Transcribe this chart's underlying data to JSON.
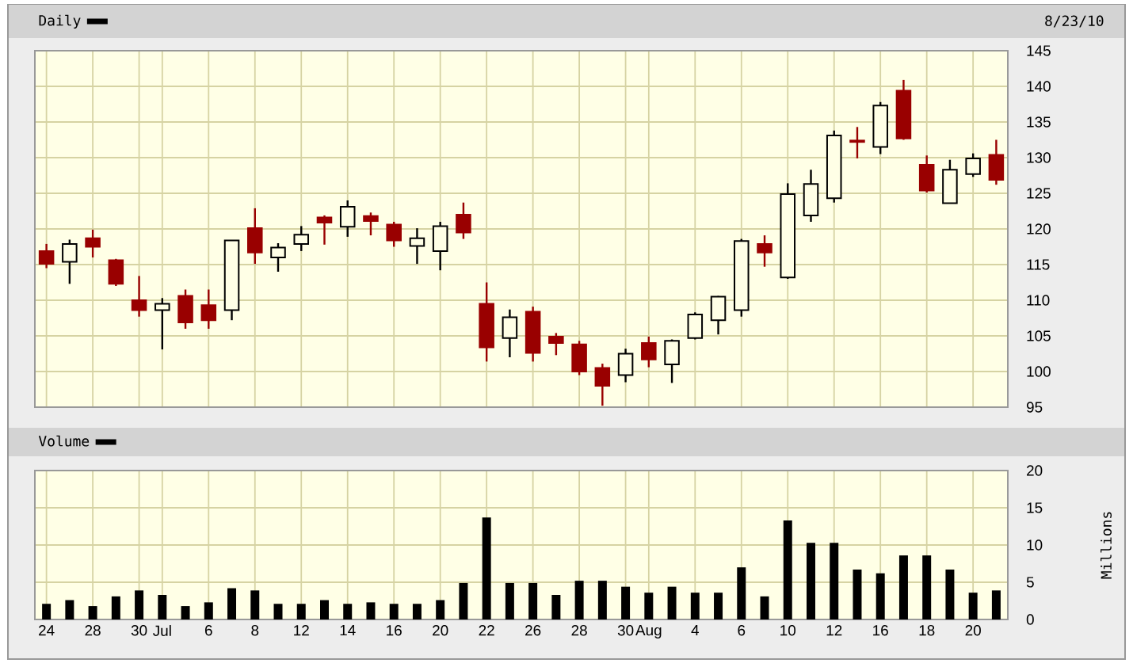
{
  "chart_data": [
    {
      "type": "candlestick",
      "categories": [
        null,
        null,
        null,
        null,
        null,
        null,
        null,
        null,
        null,
        null,
        null,
        null,
        null,
        null,
        null,
        null,
        null,
        null,
        null,
        null,
        null,
        null,
        null,
        null,
        null,
        null,
        null,
        null,
        null,
        null,
        null,
        null,
        null,
        null,
        null,
        null,
        null,
        null,
        null,
        null,
        null,
        null
      ],
      "series": [
        {
          "name": "Daily",
          "color": "#000000",
          "ohlc": [
            [
              116.9,
              117.9,
              114.5,
              115.1
            ],
            [
              115.4,
              118.5,
              112.3,
              117.9
            ],
            [
              118.7,
              119.9,
              116.0,
              117.5
            ],
            [
              115.6,
              115.8,
              112.0,
              112.3
            ],
            [
              110.0,
              113.4,
              107.7,
              108.6
            ],
            [
              108.6,
              110.3,
              103.1,
              109.5
            ],
            [
              110.6,
              111.5,
              106.0,
              106.9
            ],
            [
              109.3,
              111.5,
              106.0,
              107.2
            ],
            [
              108.6,
              118.4,
              107.2,
              118.4
            ],
            [
              120.1,
              122.9,
              115.1,
              116.7
            ],
            [
              116.0,
              118.0,
              114.0,
              117.4
            ],
            [
              117.9,
              120.4,
              116.9,
              119.2
            ],
            [
              121.6,
              121.9,
              117.8,
              120.9
            ],
            [
              120.3,
              124.0,
              118.9,
              123.1
            ],
            [
              121.8,
              122.3,
              119.1,
              121.1
            ],
            [
              120.6,
              121.0,
              117.5,
              118.4
            ],
            [
              117.6,
              120.1,
              115.1,
              118.7
            ],
            [
              116.9,
              121.0,
              114.2,
              120.4
            ],
            [
              122.0,
              123.7,
              118.6,
              119.5
            ],
            [
              109.5,
              112.5,
              101.4,
              103.4
            ],
            [
              104.7,
              108.7,
              102.0,
              107.6
            ],
            [
              108.4,
              109.1,
              101.4,
              102.6
            ],
            [
              104.9,
              105.4,
              102.3,
              104.0
            ],
            [
              103.8,
              104.3,
              99.5,
              100.0
            ],
            [
              100.5,
              101.1,
              95.2,
              98.0
            ],
            [
              99.5,
              103.2,
              98.5,
              102.5
            ],
            [
              104.0,
              104.9,
              100.6,
              101.7
            ],
            [
              101.0,
              104.5,
              98.4,
              104.3
            ],
            [
              104.7,
              108.3,
              104.5,
              108.0
            ],
            [
              107.2,
              110.6,
              105.2,
              110.5
            ],
            [
              108.6,
              118.6,
              107.7,
              118.3
            ],
            [
              117.9,
              119.1,
              114.7,
              116.7
            ],
            [
              113.2,
              126.4,
              113.0,
              124.9
            ],
            [
              121.9,
              128.3,
              121.0,
              126.3
            ],
            [
              124.3,
              133.8,
              123.7,
              133.1
            ],
            [
              132.4,
              134.3,
              129.9,
              132.2
            ],
            [
              131.5,
              137.8,
              130.5,
              137.3
            ],
            [
              139.4,
              140.9,
              132.5,
              132.7
            ],
            [
              129.0,
              130.3,
              125.1,
              125.4
            ],
            [
              123.6,
              129.7,
              123.6,
              128.3
            ],
            [
              127.7,
              130.6,
              127.3,
              129.9
            ],
            [
              130.4,
              132.5,
              126.2,
              126.9
            ]
          ],
          "colors": [
            "#990000",
            "#000000",
            "#990000",
            "#990000",
            "#990000",
            "#000000",
            "#990000",
            "#990000",
            "#000000",
            "#990000",
            "#000000",
            "#000000",
            "#990000",
            "#000000",
            "#990000",
            "#990000",
            "#000000",
            "#000000",
            "#990000",
            "#990000",
            "#000000",
            "#990000",
            "#990000",
            "#990000",
            "#990000",
            "#000000",
            "#990000",
            "#000000",
            "#000000",
            "#000000",
            "#000000",
            "#990000",
            "#000000",
            "#000000",
            "#000000",
            "#990000",
            "#000000",
            "#990000",
            "#990000",
            "#000000",
            "#000000",
            "#990000"
          ]
        }
      ],
      "annotations": [
        "8/23/10"
      ],
      "ylim": [
        95,
        145
      ],
      "yticks": [
        95,
        100,
        105,
        110,
        115,
        120,
        125,
        130,
        135,
        140,
        145
      ],
      "grid": true,
      "legend": "top left",
      "tick_labels": "y"
    },
    {
      "type": "bar",
      "categories": [
        "24",
        null,
        "28",
        null,
        "30",
        "Jul",
        null,
        "6",
        null,
        "8",
        null,
        "12",
        null,
        "14",
        null,
        "16",
        null,
        "20",
        null,
        "22",
        null,
        "26",
        null,
        "28",
        null,
        "30",
        "Aug",
        null,
        "4",
        null,
        "6",
        null,
        "10",
        null,
        "12",
        null,
        "16",
        null,
        "18",
        null,
        "20",
        null
      ],
      "series": [
        {
          "name": "Volume",
          "color": "#000000",
          "values": [
            2.1,
            2.6,
            1.8,
            3.1,
            3.9,
            3.3,
            1.8,
            2.3,
            4.2,
            3.9,
            2.1,
            2.1,
            2.6,
            2.1,
            2.3,
            2.1,
            2.1,
            2.6,
            4.9,
            13.7,
            4.9,
            4.9,
            3.3,
            5.2,
            5.2,
            4.4,
            3.6,
            4.4,
            3.6,
            3.6,
            7.0,
            3.1,
            13.3,
            10.3,
            10.3,
            6.7,
            6.2,
            8.6,
            8.6,
            6.7,
            3.6,
            3.9
          ]
        }
      ],
      "ylabel": "Millions",
      "ylim": [
        0,
        20
      ],
      "yticks": [
        0,
        5,
        10,
        15,
        20
      ],
      "grid": true,
      "legend": "top left"
    }
  ]
}
